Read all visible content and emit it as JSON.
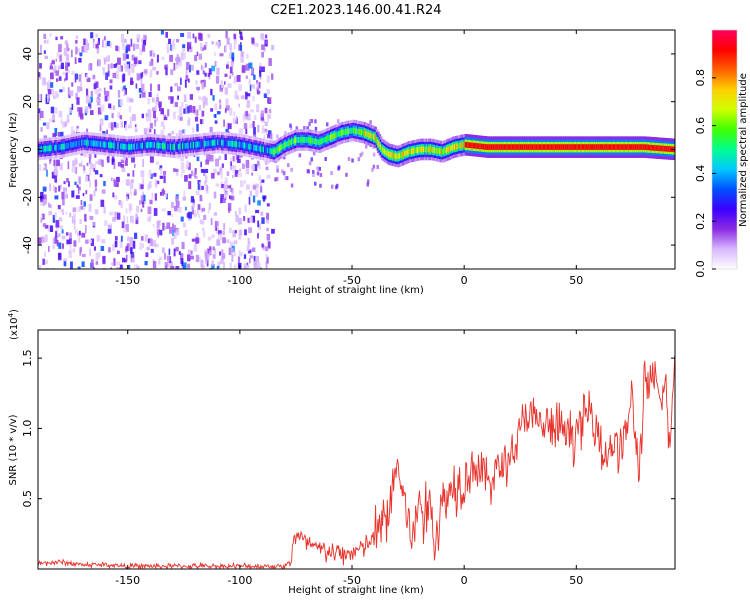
{
  "title": "C2E1.2023.146.00.41.R24",
  "chart_data": [
    {
      "type": "heatmap",
      "xlabel": "Height of straight line (km)",
      "ylabel": "Frequency (Hz)",
      "xlim": [
        -190,
        94
      ],
      "ylim": [
        -50,
        50
      ],
      "xticks": [
        -150,
        -100,
        -50,
        0,
        50
      ],
      "yticks": [
        -40,
        -20,
        0,
        20,
        40
      ],
      "colorbar": {
        "label": "Normalized spectral amplitude",
        "range": [
          0.0,
          1.0
        ],
        "ticks": [
          0.0,
          0.2,
          0.4,
          0.6,
          0.8
        ],
        "colors": [
          "#ffffff",
          "#d8b8ff",
          "#8a2be2",
          "#3c00ff",
          "#0050ff",
          "#00c8ff",
          "#00ff90",
          "#40ff00",
          "#d0ff00",
          "#ffd000",
          "#ff6000",
          "#ff0000",
          "#ff0060"
        ]
      },
      "ridge": {
        "name": "dominant frequency",
        "x": [
          -190,
          -180,
          -170,
          -160,
          -150,
          -140,
          -130,
          -120,
          -110,
          -100,
          -95,
          -90,
          -85,
          -80,
          -75,
          -70,
          -65,
          -60,
          -55,
          -50,
          -45,
          -40,
          -37,
          -34,
          -30,
          -25,
          -20,
          -15,
          -10,
          -5,
          0,
          10,
          20,
          40,
          60,
          80,
          94
        ],
        "y": [
          0,
          1,
          3,
          2,
          1,
          2,
          1,
          2,
          3,
          2,
          1,
          0,
          -1,
          2,
          4,
          4,
          3,
          5,
          7,
          8,
          7,
          5,
          0,
          -2,
          -3,
          -1,
          0,
          0,
          -1,
          1,
          2,
          1,
          1,
          1,
          1,
          1,
          0
        ]
      }
    },
    {
      "type": "line",
      "xlabel": "Height of straight line (km)",
      "ylabel": "SNR (10 * v/v)",
      "scale_label": "(x10",
      "scale_exp": "4",
      "scale_close": ")",
      "xlim": [
        -190,
        94
      ],
      "ylim": [
        0,
        1.7
      ],
      "xticks": [
        -150,
        -100,
        -50,
        0,
        50
      ],
      "yticks": [
        0.5,
        1.0,
        1.5
      ],
      "ytick_labels": [
        "0.5",
        "1.0",
        "1.5"
      ],
      "series": [
        {
          "color": "#e8322a",
          "x": [
            -190,
            -180,
            -170,
            -160,
            -150,
            -140,
            -130,
            -120,
            -110,
            -100,
            -90,
            -80,
            -77,
            -76,
            -70,
            -65,
            -60,
            -55,
            -50,
            -45,
            -40,
            -35,
            -32,
            -30,
            -28,
            -25,
            -22,
            -20,
            -18,
            -15,
            -13,
            -10,
            -5,
            0,
            5,
            10,
            15,
            20,
            25,
            27,
            30,
            35,
            40,
            45,
            50,
            55,
            60,
            62,
            65,
            70,
            75,
            78,
            80,
            85,
            88,
            90,
            92,
            94
          ],
          "y": [
            0.04,
            0.05,
            0.03,
            0.03,
            0.02,
            0.02,
            0.02,
            0.02,
            0.02,
            0.02,
            0.02,
            0.02,
            0.06,
            0.25,
            0.18,
            0.14,
            0.12,
            0.1,
            0.12,
            0.15,
            0.22,
            0.35,
            0.55,
            0.75,
            0.6,
            0.35,
            0.2,
            0.55,
            0.35,
            0.45,
            0.2,
            0.45,
            0.6,
            0.65,
            0.75,
            0.62,
            0.7,
            0.8,
            0.95,
            1.12,
            1.05,
            1.02,
            1.0,
            0.98,
            0.95,
            1.12,
            1.05,
            0.75,
            0.9,
            0.85,
            1.2,
            0.65,
            1.3,
            1.3,
            1.2,
            1.3,
            0.8,
            1.65
          ]
        }
      ]
    }
  ]
}
